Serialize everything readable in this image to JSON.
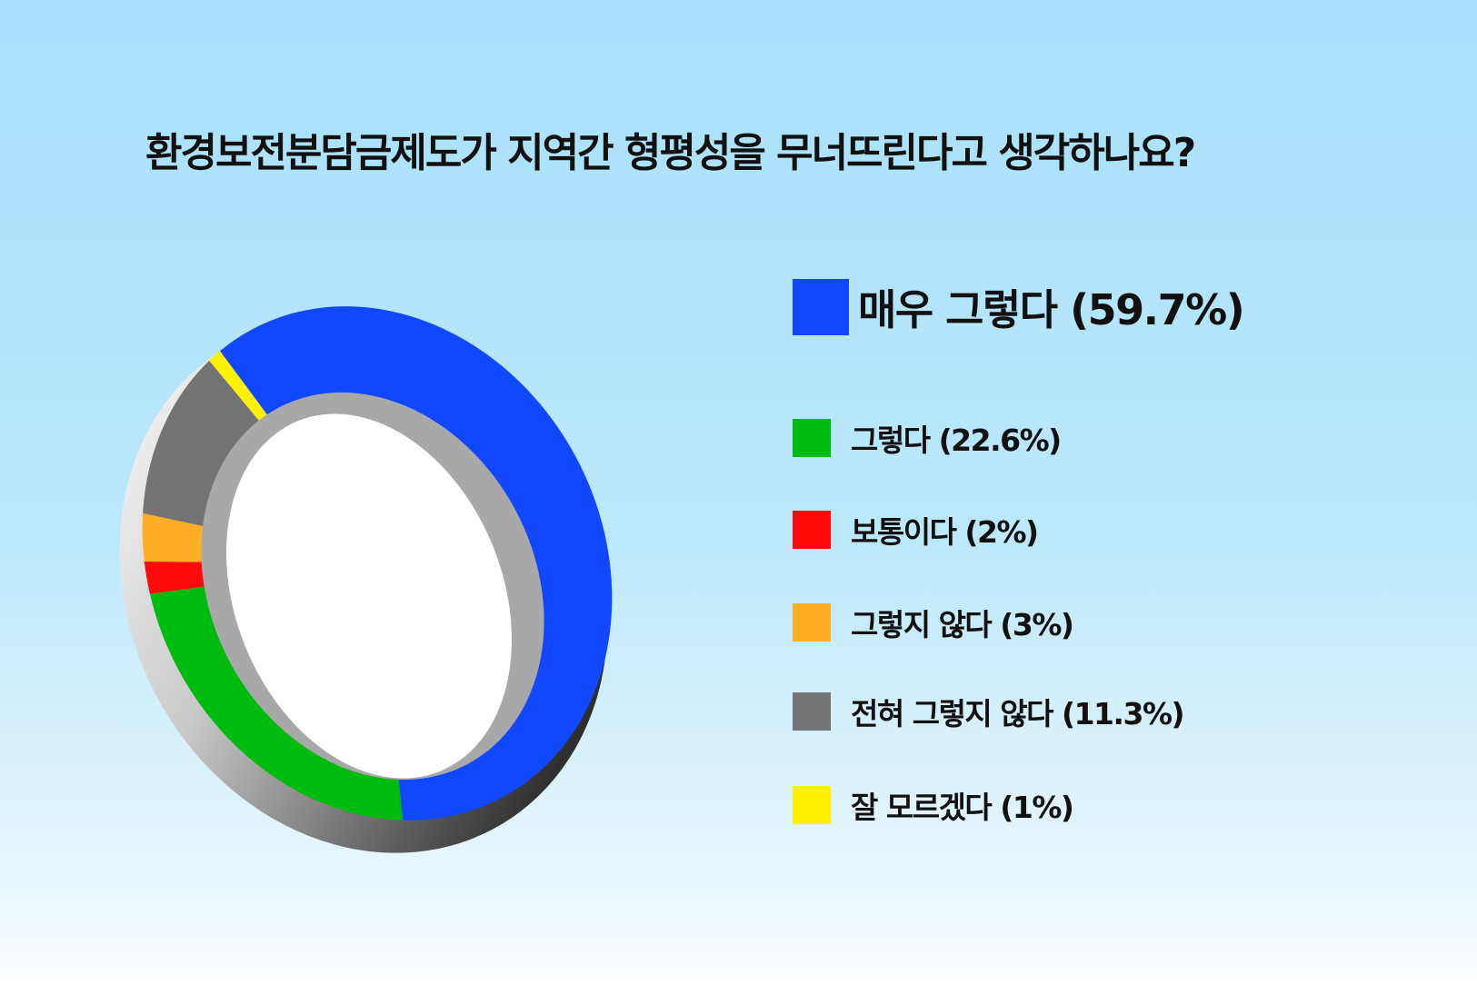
{
  "chart_data": {
    "type": "pie",
    "title": "환경보전분담금제도가 지역간 형평성을 무너뜨린다고 생각하나요?",
    "categories": [
      "매우 그렇다",
      "그렇다",
      "보통이다",
      "그렇지 않다",
      "전혀 그렇지 않다",
      "잘 모르겠다"
    ],
    "values": [
      59.7,
      22.6,
      2,
      3,
      11.3,
      1
    ],
    "legend_labels": [
      "매우 그렇다 (59.7%)",
      "그렇다 (22.6%)",
      "보통이다 (2%)",
      "그렇지 않다 (3%)",
      "전혀 그렇지 않다 (11.3%)",
      "잘 모르겠다 (1%)"
    ],
    "colors": [
      "#1148ff",
      "#00bb0f",
      "#ff0a0a",
      "#ffaf26",
      "#737373",
      "#fff200"
    ],
    "legend_position": "right",
    "style": "donut"
  }
}
